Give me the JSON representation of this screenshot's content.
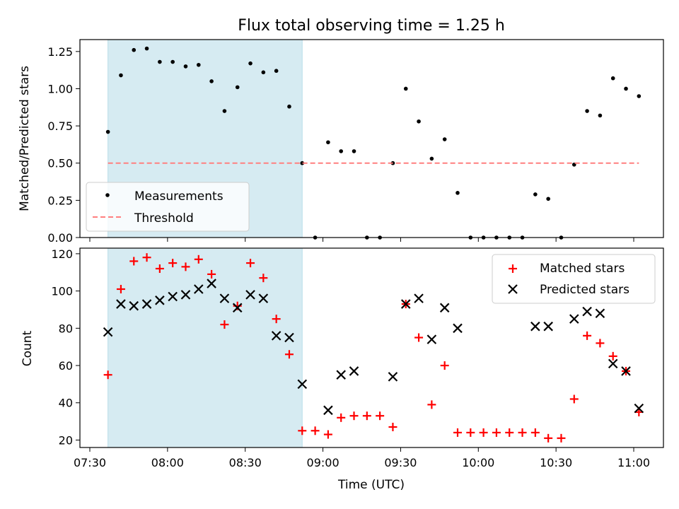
{
  "chart_data": [
    {
      "type": "scatter",
      "title": "Flux total observing time = 1.25 h",
      "ylabel": "Matched/Predicted stars",
      "xlabel": "",
      "ylim": [
        0,
        1.33
      ],
      "yticks": [
        0.0,
        0.25,
        0.5,
        0.75,
        1.0,
        1.25
      ],
      "ytick_labels": [
        "0.00",
        "0.25",
        "0.50",
        "0.75",
        "1.00",
        "1.25"
      ],
      "legend_position": "lower-left",
      "shaded_interval": {
        "start": "07:37",
        "end": "08:52",
        "color": "#add8e6"
      },
      "series": [
        {
          "name": "Measurements",
          "marker": "dot",
          "color": "#000000",
          "x": [
            "07:37",
            "07:42",
            "07:47",
            "07:52",
            "07:57",
            "08:02",
            "08:07",
            "08:12",
            "08:17",
            "08:22",
            "08:27",
            "08:32",
            "08:37",
            "08:42",
            "08:47",
            "08:52",
            "08:57",
            "09:02",
            "09:07",
            "09:12",
            "09:17",
            "09:22",
            "09:27",
            "09:32",
            "09:37",
            "09:42",
            "09:47",
            "09:52",
            "09:57",
            "10:02",
            "10:07",
            "10:12",
            "10:17",
            "10:22",
            "10:27",
            "10:32",
            "10:37",
            "10:42",
            "10:47",
            "10:52",
            "10:57",
            "11:02"
          ],
          "y": [
            0.71,
            1.09,
            1.26,
            1.27,
            1.18,
            1.18,
            1.15,
            1.16,
            1.05,
            0.85,
            1.01,
            1.17,
            1.11,
            1.12,
            0.88,
            0.5,
            0.0,
            0.64,
            0.58,
            0.58,
            0.0,
            0.0,
            0.5,
            1.0,
            0.78,
            0.53,
            0.66,
            0.3,
            0.0,
            0.0,
            0.0,
            0.0,
            0.0,
            0.29,
            0.26,
            0.0,
            0.49,
            0.85,
            0.82,
            1.07,
            1.0,
            0.95
          ]
        },
        {
          "name": "Threshold",
          "marker": "dashed-line",
          "color": "#ff7f7f",
          "x": [
            "07:37",
            "11:02"
          ],
          "y": [
            0.5,
            0.5
          ]
        }
      ]
    },
    {
      "type": "scatter",
      "title": "",
      "ylabel": "Count",
      "xlabel": "Time (UTC)",
      "ylim": [
        16,
        123
      ],
      "yticks": [
        20,
        40,
        60,
        80,
        100,
        120
      ],
      "ytick_labels": [
        "20",
        "40",
        "60",
        "80",
        "100",
        "120"
      ],
      "xticks": [
        "07:30",
        "08:00",
        "08:30",
        "09:00",
        "09:30",
        "10:00",
        "10:30",
        "11:00"
      ],
      "legend_position": "top-right",
      "shaded_interval": {
        "start": "07:37",
        "end": "08:52",
        "color": "#add8e6"
      },
      "series": [
        {
          "name": "Matched stars",
          "marker": "plus",
          "color": "#ff0000",
          "x": [
            "07:37",
            "07:42",
            "07:47",
            "07:52",
            "07:57",
            "08:02",
            "08:07",
            "08:12",
            "08:17",
            "08:22",
            "08:27",
            "08:32",
            "08:37",
            "08:42",
            "08:47",
            "08:52",
            "08:57",
            "09:02",
            "09:07",
            "09:12",
            "09:17",
            "09:22",
            "09:27",
            "09:32",
            "09:37",
            "09:42",
            "09:47",
            "09:52",
            "09:57",
            "10:02",
            "10:07",
            "10:12",
            "10:17",
            "10:22",
            "10:27",
            "10:32",
            "10:37",
            "10:42",
            "10:47",
            "10:52",
            "10:57",
            "11:02"
          ],
          "y": [
            55,
            101,
            116,
            118,
            112,
            115,
            113,
            117,
            109,
            82,
            92,
            115,
            107,
            85,
            66,
            25,
            25,
            23,
            32,
            33,
            33,
            33,
            27,
            93,
            75,
            39,
            60,
            24,
            24,
            24,
            24,
            24,
            24,
            24,
            21,
            21,
            42,
            76,
            72,
            65,
            57,
            35
          ]
        },
        {
          "name": "Predicted stars",
          "marker": "x",
          "color": "#000000",
          "x": [
            "07:37",
            "07:42",
            "07:47",
            "07:52",
            "07:57",
            "08:02",
            "08:07",
            "08:12",
            "08:17",
            "08:22",
            "08:27",
            "08:32",
            "08:37",
            "08:42",
            "08:47",
            "08:52",
            "09:02",
            "09:07",
            "09:12",
            "09:27",
            "09:32",
            "09:37",
            "09:42",
            "09:47",
            "09:52",
            "10:22",
            "10:27",
            "10:37",
            "10:42",
            "10:47",
            "10:52",
            "10:57",
            "11:02"
          ],
          "y": [
            78,
            93,
            92,
            93,
            95,
            97,
            98,
            101,
            104,
            96,
            91,
            98,
            96,
            76,
            75,
            50,
            36,
            55,
            57,
            54,
            93,
            96,
            74,
            91,
            80,
            81,
            81,
            85,
            89,
            88,
            61,
            57,
            37
          ]
        }
      ]
    }
  ]
}
